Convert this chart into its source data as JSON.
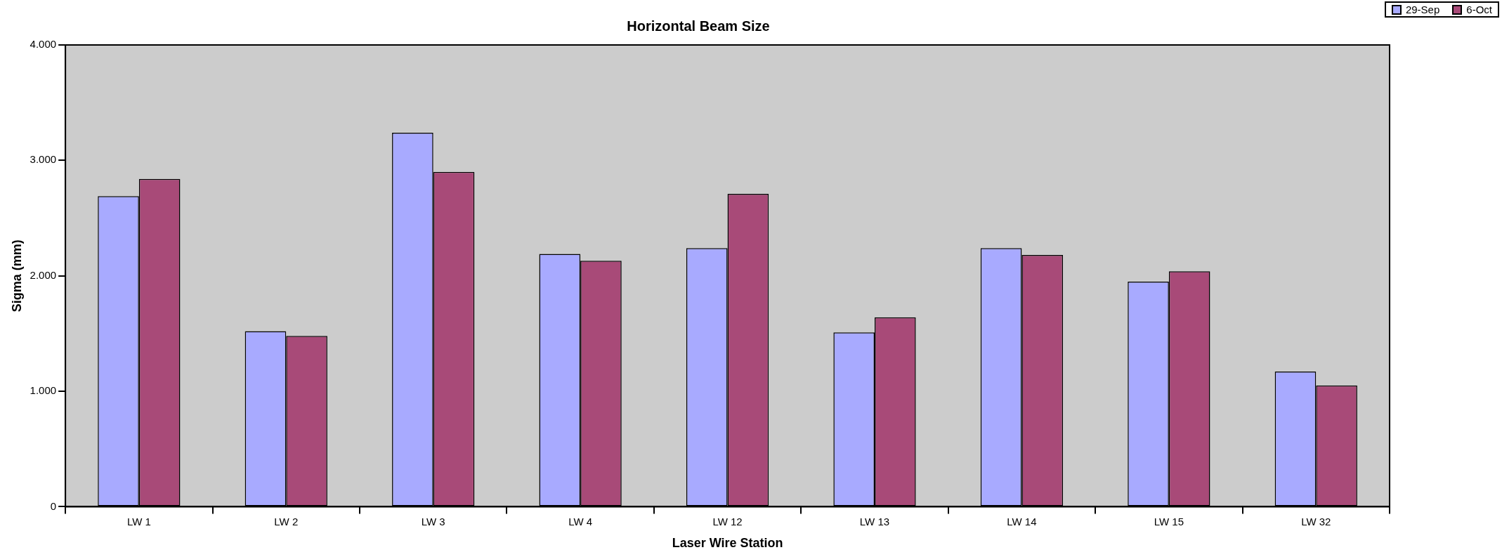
{
  "chart_data": {
    "type": "bar",
    "title": "Horizontal Beam Size",
    "xlabel": "Laser Wire Station",
    "ylabel": "Sigma (mm)",
    "categories": [
      "LW 1",
      "LW 2",
      "LW 3",
      "LW 4",
      "LW 12",
      "LW 13",
      "LW 14",
      "LW 15",
      "LW 32"
    ],
    "series": [
      {
        "name": "29-Sep",
        "color": "#a8aaff",
        "values": [
          2690,
          1520,
          3240,
          2190,
          2240,
          1510,
          2240,
          1950,
          1170
        ]
      },
      {
        "name": "6-Oct",
        "color": "#a84a78",
        "values": [
          2840,
          1480,
          2900,
          2130,
          2710,
          1640,
          2180,
          2040,
          1050
        ]
      }
    ],
    "ylim": [
      0,
      4000
    ],
    "yticks": [
      0,
      {
        "value": 1000,
        "label": "1.000"
      },
      {
        "value": 2000,
        "label": "2.000"
      },
      {
        "value": 3000,
        "label": "3.000"
      },
      {
        "value": 4000,
        "label": "4.000"
      }
    ],
    "grid": false,
    "legend": "top right"
  }
}
